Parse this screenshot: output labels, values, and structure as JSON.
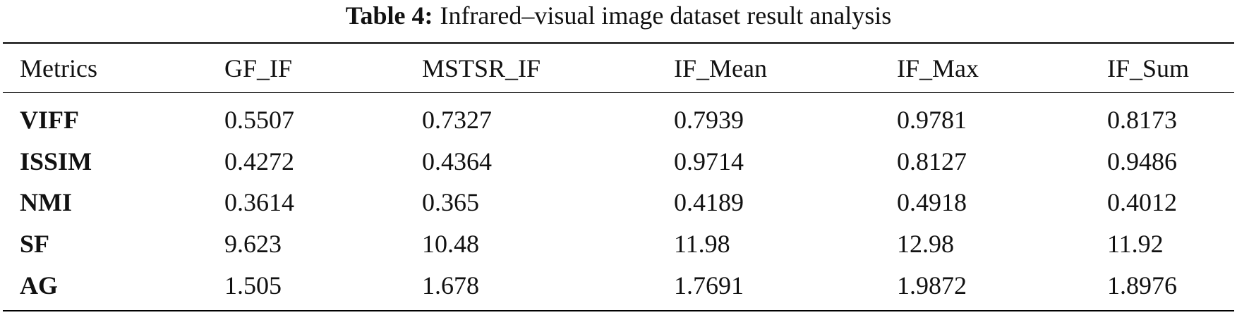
{
  "caption": {
    "label": "Table 4:",
    "text": "Infrared–visual image dataset result analysis"
  },
  "table": {
    "header": [
      "Metrics",
      "GF_IF",
      "MSTSR_IF",
      "IF_Mean",
      "IF_Max",
      "IF_Sum"
    ],
    "rows": [
      [
        "VIFF",
        "0.5507",
        "0.7327",
        "0.7939",
        "0.9781",
        "0.8173"
      ],
      [
        "ISSIM",
        "0.4272",
        "0.4364",
        "0.9714",
        "0.8127",
        "0.9486"
      ],
      [
        "NMI",
        "0.3614",
        "0.365",
        "0.4189",
        "0.4918",
        "0.4012"
      ],
      [
        "SF",
        "9.623",
        "10.48",
        "11.98",
        "12.98",
        "11.92"
      ],
      [
        "AG",
        "1.505",
        "1.678",
        "1.7691",
        "1.9872",
        "1.8976"
      ]
    ]
  }
}
